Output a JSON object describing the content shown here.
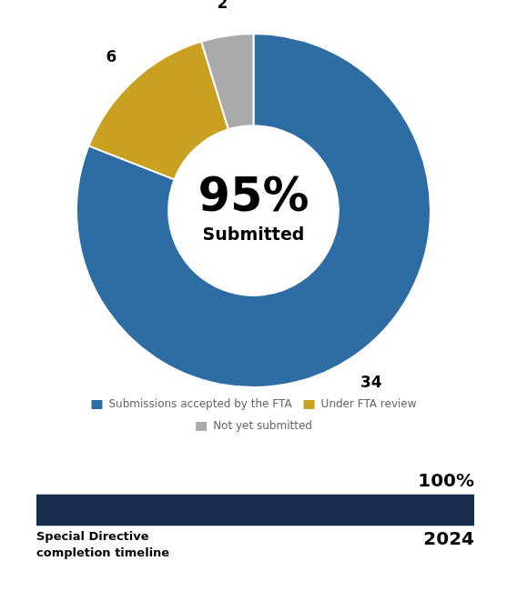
{
  "chart_data": [
    {
      "type": "doughnut",
      "categories": [
        "Submissions accepted by the FTA",
        "Under FTA review",
        "Not yet submitted"
      ],
      "values": [
        34,
        6,
        2
      ],
      "colors": [
        "#2E6DA4",
        "#C9A020",
        "#AAAAAA"
      ],
      "data_labels": true,
      "legend": "bottom",
      "annotations": [
        "95%",
        "Submitted"
      ]
    },
    {
      "type": "bar",
      "orientation": "horizontal",
      "categories": [
        null
      ],
      "values": [
        100
      ],
      "value_labels": [
        "100%"
      ],
      "data_labels": true,
      "color": "#162d50",
      "xlim": [
        0,
        100
      ],
      "grid": false,
      "tick_labels": false,
      "annotations": [
        "Special Directive\ncompletion timeline",
        "2024"
      ]
    }
  ]
}
